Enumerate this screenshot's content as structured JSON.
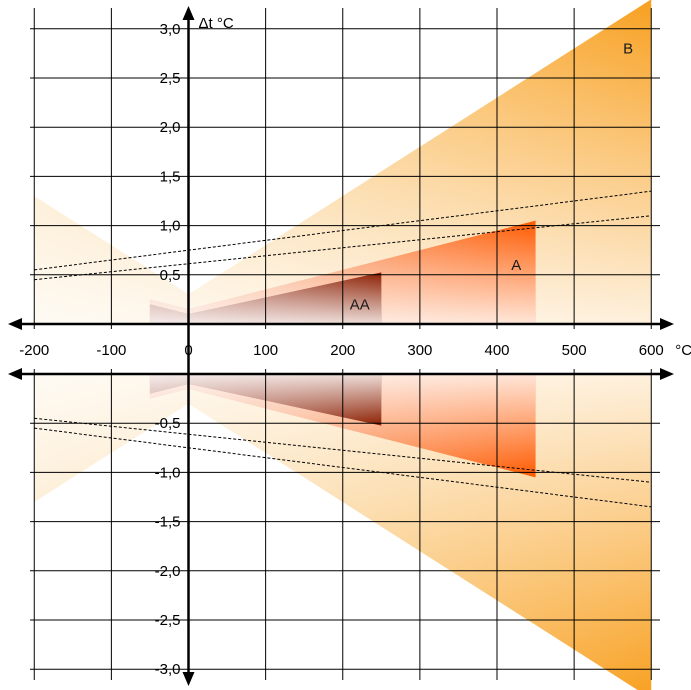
{
  "chart_data": {
    "type": "area",
    "title": "",
    "xlabel": "°C",
    "ylabel": "Δt °C",
    "xlim": [
      -200,
      600
    ],
    "ylim": [
      -3.0,
      3.0
    ],
    "grid": true,
    "x_ticks": [
      -200,
      -100,
      0,
      100,
      200,
      300,
      400,
      500,
      600
    ],
    "x_tick_labels": [
      "-200",
      "-100",
      "0",
      "100",
      "200",
      "300",
      "400",
      "500",
      "600"
    ],
    "y_ticks": [
      3.0,
      2.5,
      2.0,
      1.5,
      1.0,
      0.5,
      -0.5,
      -1.0,
      -1.5,
      -2.0,
      -2.5,
      -3.0
    ],
    "y_tick_labels": [
      "3,0",
      "2,5",
      "2,0",
      "1,5",
      "1,0",
      "0,5",
      "-0,5",
      "-1,0",
      "-1,5",
      "-2,0",
      "-2,5",
      "-3,0"
    ],
    "series": [
      {
        "name": "B",
        "color": "#f8a020",
        "points": [
          [
            -200,
            1.3
          ],
          [
            0,
            0.3
          ],
          [
            600,
            3.3
          ]
        ],
        "range": [
          -200,
          600
        ]
      },
      {
        "name": "A",
        "color": "#ff6010",
        "points": [
          [
            -200,
            0.55
          ],
          [
            0,
            0.15
          ],
          [
            450,
            1.05
          ]
        ],
        "range": [
          -50,
          450
        ]
      },
      {
        "name": "AA",
        "color": "#8b2000",
        "points": [
          [
            -200,
            0.5
          ],
          [
            0,
            0.1
          ],
          [
            250,
            0.525
          ]
        ],
        "range": [
          -50,
          250
        ]
      }
    ],
    "dashed_lines": [
      {
        "points": [
          [
            -200,
            0.55
          ],
          [
            600,
            1.35
          ]
        ]
      },
      {
        "points": [
          [
            -200,
            0.45
          ],
          [
            600,
            1.1
          ]
        ]
      }
    ],
    "annotations": [
      {
        "text": "B",
        "x": 570,
        "y": 2.8
      },
      {
        "text": "A",
        "x": 425,
        "y": 0.6
      },
      {
        "text": "AA",
        "x": 222,
        "y": 0.2
      }
    ]
  }
}
